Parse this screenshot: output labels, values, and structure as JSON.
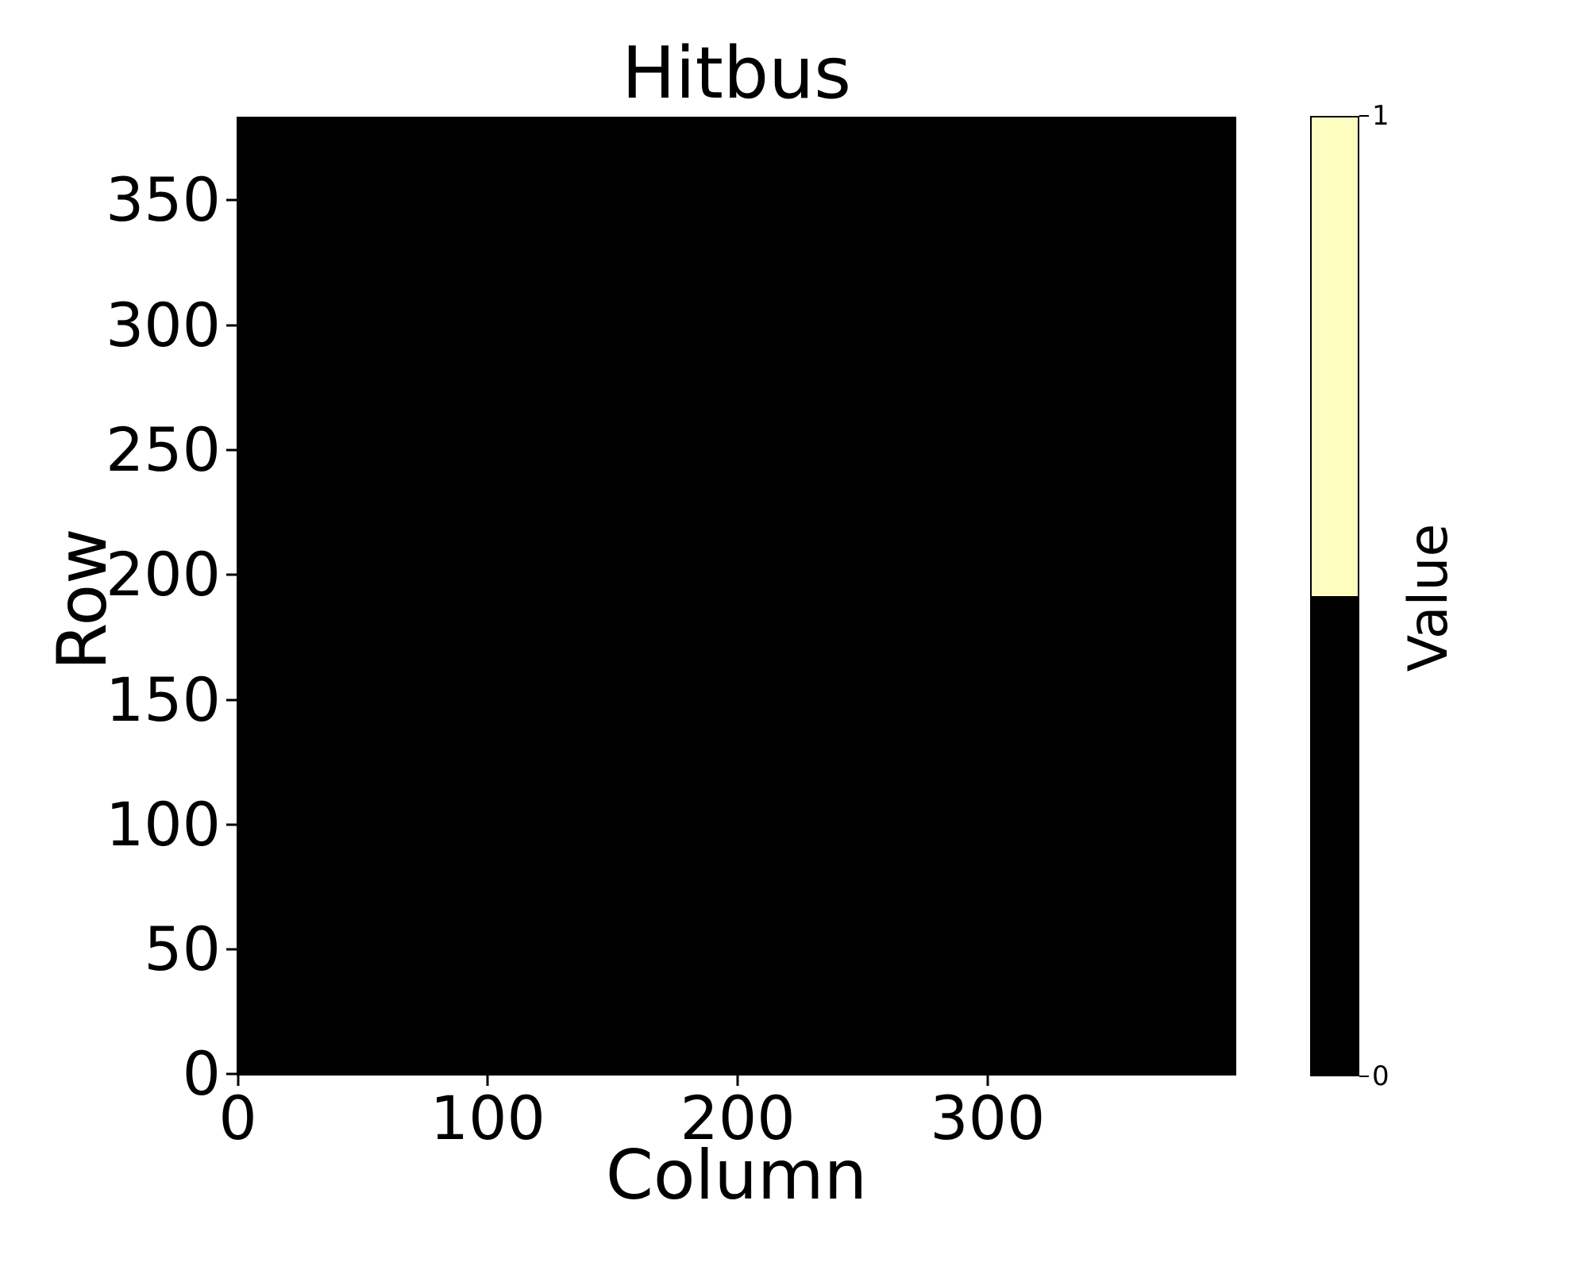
{
  "title": "Hitbus",
  "axes": {
    "xlabel": "Column",
    "ylabel": "Row",
    "x_ticks": [
      0,
      100,
      200,
      300
    ],
    "y_ticks": [
      0,
      50,
      100,
      150,
      200,
      250,
      300,
      350
    ],
    "x_range": [
      -0.5,
      399.5
    ],
    "y_range": [
      -0.5,
      383.5
    ]
  },
  "colorbar": {
    "label": "Value",
    "ticks": [
      0,
      1
    ],
    "value_range": [
      0,
      1
    ],
    "color_low": "#000000",
    "color_high": "#fcfdbf"
  },
  "chart_data": {
    "type": "heatmap",
    "title": "Hitbus",
    "xlabel": "Column",
    "ylabel": "Row",
    "n_columns": 400,
    "n_rows": 384,
    "x_ticks": [
      0,
      100,
      200,
      300
    ],
    "y_ticks": [
      0,
      50,
      100,
      150,
      200,
      250,
      300,
      350
    ],
    "xlim": [
      -0.5,
      399.5
    ],
    "ylim": [
      -0.5,
      383.5
    ],
    "uniform_value": 0,
    "value_range": [
      0,
      1
    ],
    "colormap": {
      "0": "#000000",
      "1": "#fcfdbf"
    },
    "colorbar_label": "Value",
    "colorbar_ticks": [
      0,
      1
    ],
    "legend": "none",
    "grid": false
  }
}
